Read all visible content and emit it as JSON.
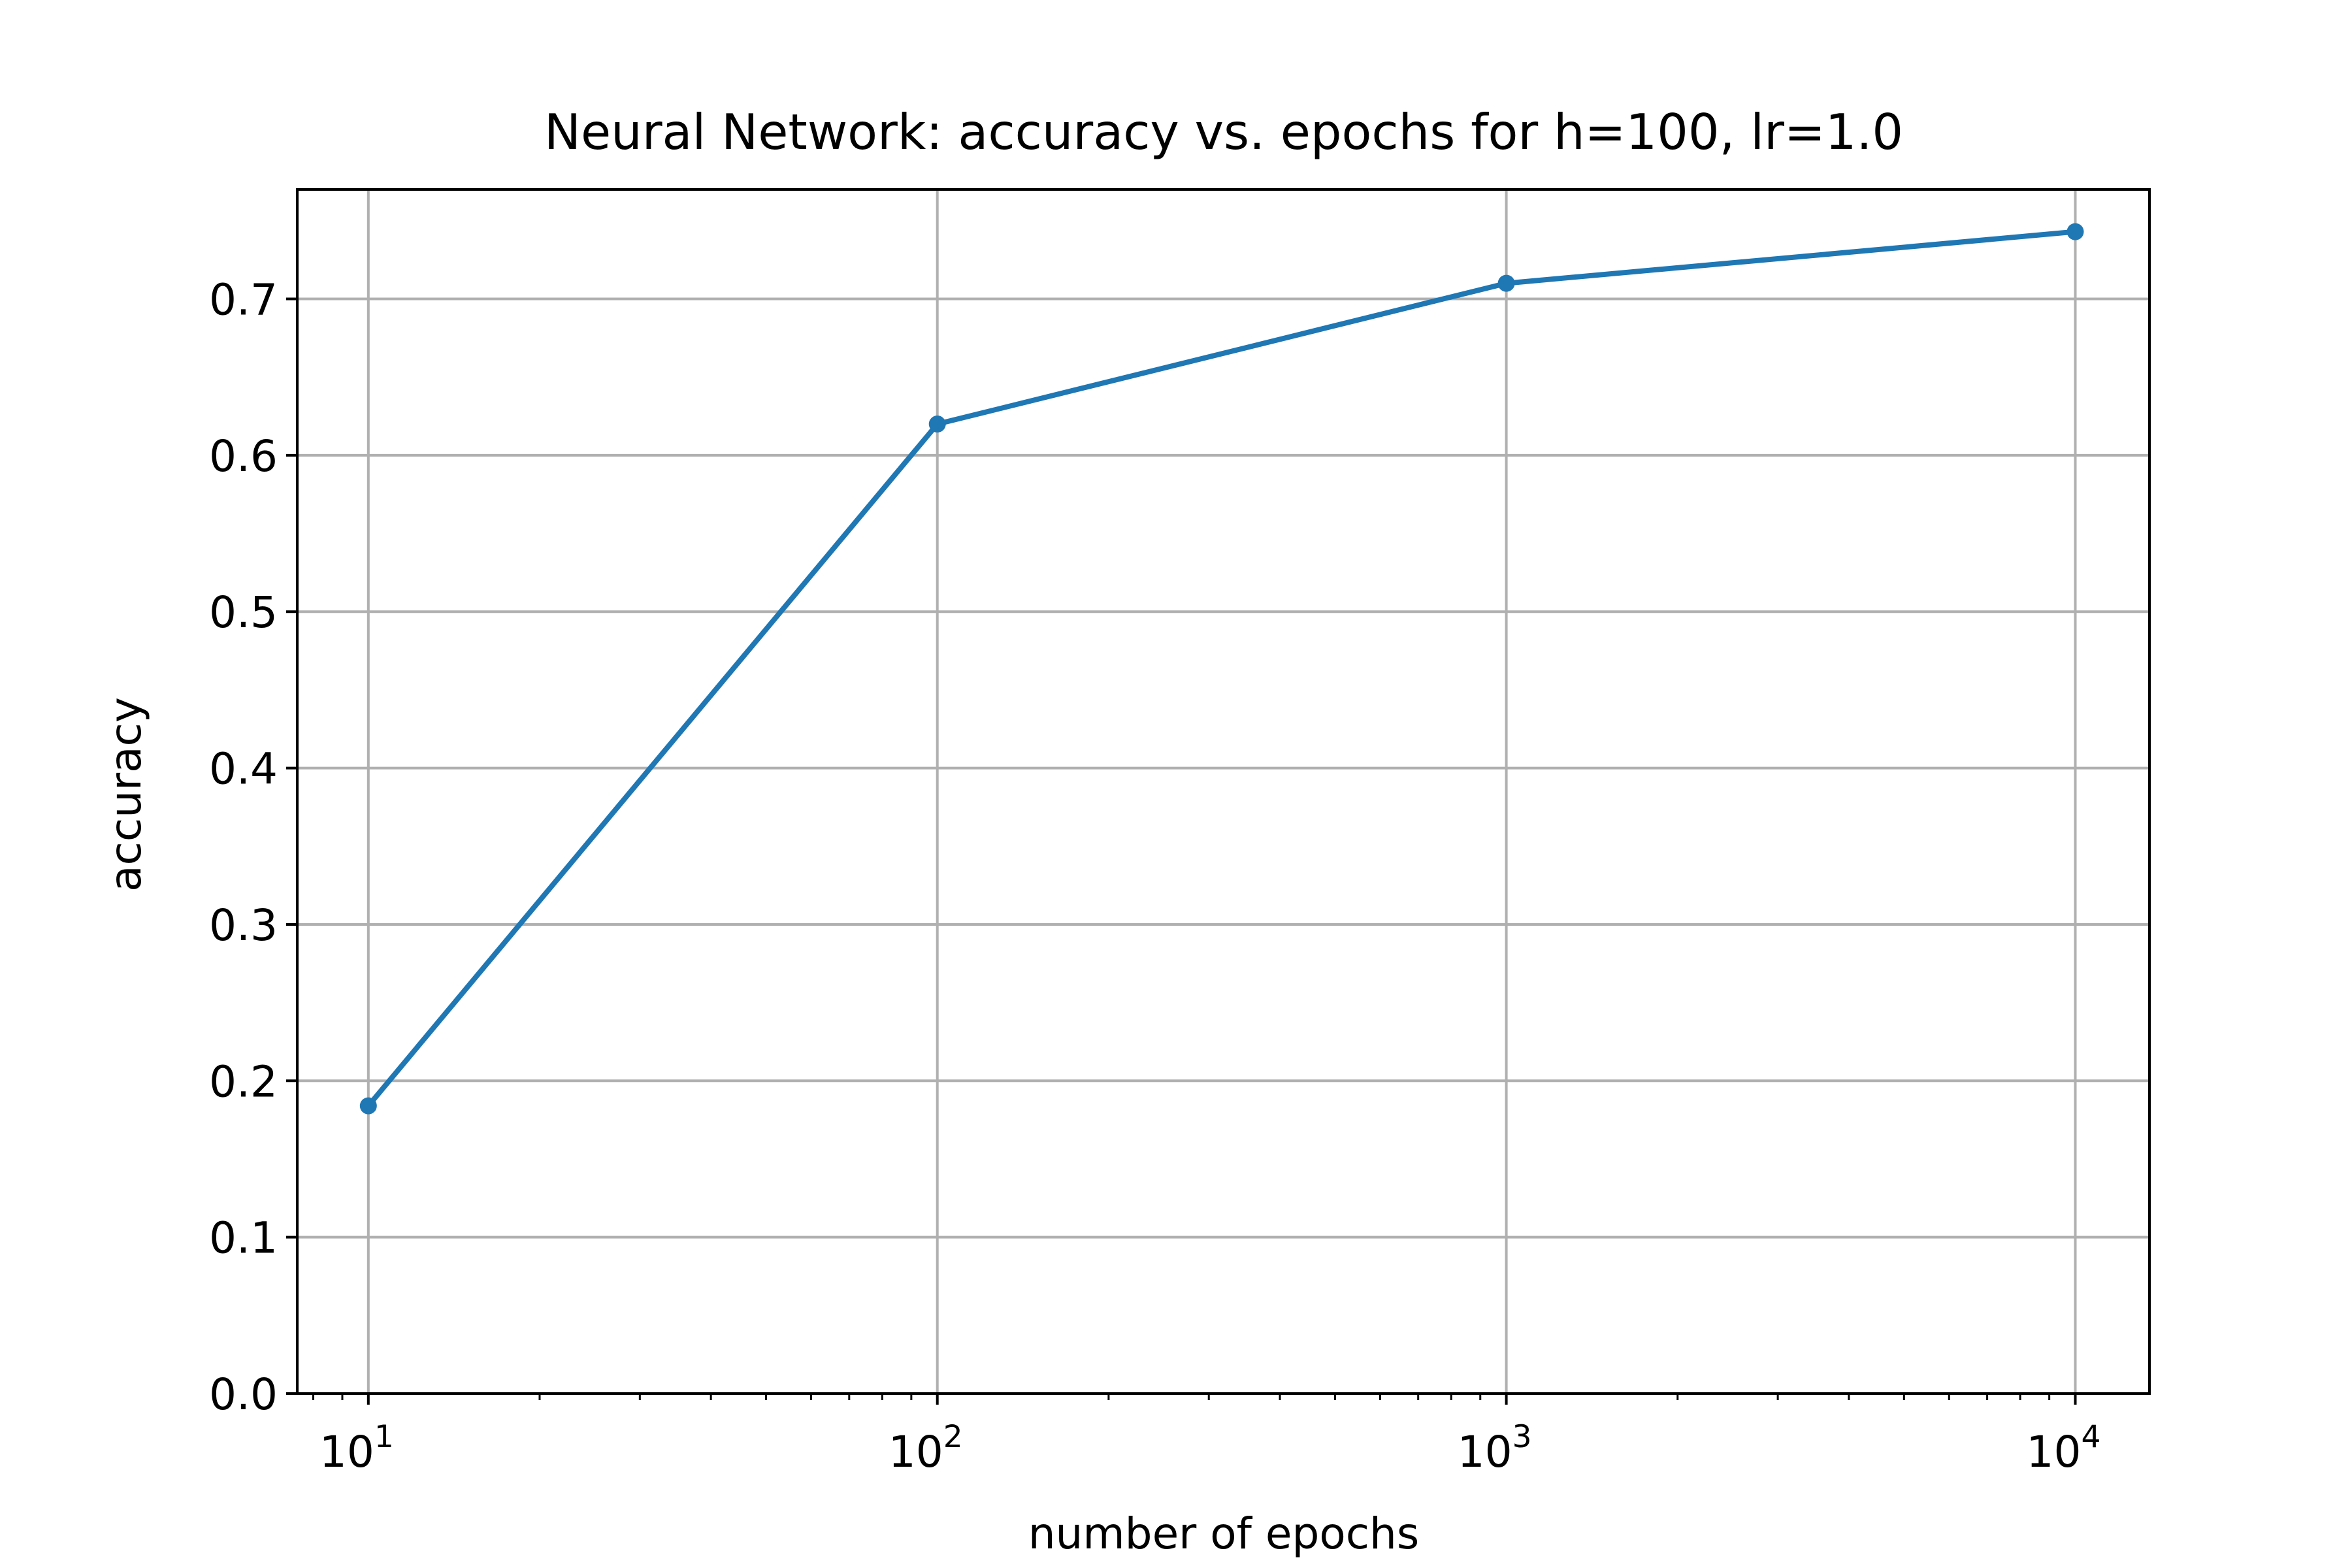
{
  "chart_data": {
    "type": "line",
    "title": "Neural Network: accuracy vs. epochs for h=100, lr=1.0",
    "xlabel": "number of epochs",
    "ylabel": "accuracy",
    "x_scale": "log",
    "xlim": [
      7.5,
      13500
    ],
    "ylim": [
      0.0,
      0.77
    ],
    "grid": true,
    "x_ticks": [
      {
        "value": 10,
        "base": "10",
        "exp": "1"
      },
      {
        "value": 100,
        "base": "10",
        "exp": "2"
      },
      {
        "value": 1000,
        "base": "10",
        "exp": "3"
      },
      {
        "value": 10000,
        "base": "10",
        "exp": "4"
      }
    ],
    "y_ticks": [
      {
        "value": 0.0,
        "label": "0.0"
      },
      {
        "value": 0.1,
        "label": "0.1"
      },
      {
        "value": 0.2,
        "label": "0.2"
      },
      {
        "value": 0.3,
        "label": "0.3"
      },
      {
        "value": 0.4,
        "label": "0.4"
      },
      {
        "value": 0.5,
        "label": "0.5"
      },
      {
        "value": 0.6,
        "label": "0.6"
      },
      {
        "value": 0.7,
        "label": "0.7"
      }
    ],
    "series": [
      {
        "color": "#1f77b4",
        "x": [
          10,
          100,
          1000,
          10000
        ],
        "y": [
          0.184,
          0.62,
          0.71,
          0.743
        ]
      }
    ]
  }
}
